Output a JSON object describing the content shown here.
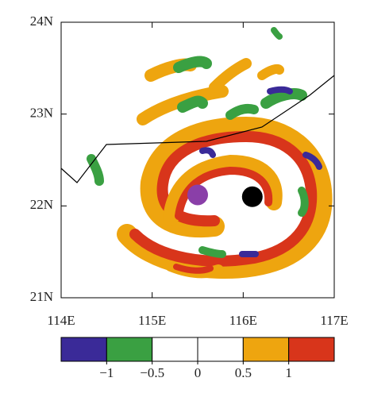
{
  "chart_data": {
    "type": "contour",
    "xlim": [
      114,
      117
    ],
    "ylim": [
      21,
      24
    ],
    "xticks": [
      {
        "value": 114,
        "label": "114E"
      },
      {
        "value": 115,
        "label": "115E"
      },
      {
        "value": 116,
        "label": "116E"
      },
      {
        "value": 117,
        "label": "117E"
      }
    ],
    "yticks": [
      {
        "value": 21,
        "label": "21N"
      },
      {
        "value": 22,
        "label": "22N"
      },
      {
        "value": 23,
        "label": "23N"
      },
      {
        "value": 24,
        "label": "24N"
      }
    ],
    "colorbar": {
      "levels": [
        {
          "value": -1,
          "label": "−1"
        },
        {
          "value": -0.5,
          "label": "−0.5"
        },
        0,
        0.5,
        1
      ],
      "colors": [
        "#3a2a98",
        "#3aa042",
        "#ffffff",
        "#ffffff",
        "#eea50f",
        "#d8351b"
      ]
    },
    "markers": [
      {
        "x": 115.5,
        "y": 22.12,
        "color": "#8a3fa8"
      },
      {
        "x": 116.1,
        "y": 22.1,
        "color": "#000000"
      }
    ]
  }
}
